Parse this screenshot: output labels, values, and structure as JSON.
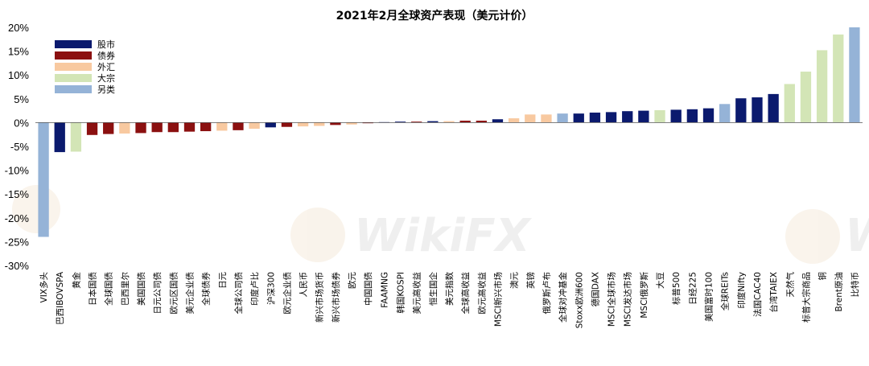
{
  "chart_data": {
    "type": "bar",
    "title": "2021年2月全球资产表现（美元计价）",
    "ylim": [
      -30,
      20
    ],
    "ytick_labels": [
      "20%",
      "15%",
      "10%",
      "5%",
      "0%",
      "-5%",
      "-10%",
      "-15%",
      "-20%",
      "-25%",
      "-30%"
    ],
    "legend_position": "top-left",
    "legend": [
      {
        "label": "股市",
        "color": "#0b1a6e"
      },
      {
        "label": "债券",
        "color": "#8b1010"
      },
      {
        "label": "外汇",
        "color": "#f8c9a0"
      },
      {
        "label": "大宗",
        "color": "#d3e5b6"
      },
      {
        "label": "另类",
        "color": "#95b3d7"
      }
    ],
    "categories": [
      "VIX多头",
      "巴西IBOVSPA",
      "黄金",
      "日本国债",
      "全球国债",
      "巴西里尔",
      "美国国债",
      "日元公司债",
      "欧元区国债",
      "美元企业债",
      "全球债券",
      "日元",
      "全球公司债",
      "印度卢比",
      "沪深300",
      "欧元企业债",
      "人民币",
      "新兴市场货币",
      "新兴市场债券",
      "欧元",
      "中国国债",
      "FAAMNG",
      "韩国KOSPI",
      "美元高收益",
      "恒生国企",
      "美元指数",
      "全球高收益",
      "欧元高收益",
      "MSCI新兴市场",
      "澳元",
      "英镑",
      "俄罗斯卢布",
      "全球对冲基金",
      "Stoxx欧洲600",
      "德国DAX",
      "MSCI全球市场",
      "MSCI发达市场",
      "MSCI俄罗斯",
      "大豆",
      "标普500",
      "日经225",
      "美国富时100",
      "全球REITs",
      "印度Nifty",
      "法国CAC40",
      "台湾TAIEX",
      "天然气",
      "标普大宗商品",
      "铜",
      "Brent原油",
      "比特币"
    ],
    "values": [
      -24.0,
      -6.2,
      -6.1,
      -2.6,
      -2.4,
      -2.3,
      -2.2,
      -2.0,
      -2.0,
      -1.9,
      -1.8,
      -1.7,
      -1.6,
      -1.3,
      -1.0,
      -0.9,
      -0.8,
      -0.7,
      -0.5,
      -0.4,
      -0.1,
      0.1,
      0.2,
      0.2,
      0.3,
      0.3,
      0.4,
      0.4,
      0.7,
      0.9,
      1.7,
      1.7,
      1.9,
      1.9,
      2.1,
      2.2,
      2.4,
      2.5,
      2.6,
      2.7,
      2.8,
      3.0,
      3.9,
      5.1,
      5.3,
      6.0,
      8.1,
      10.7,
      15.2,
      18.5,
      20.0
    ],
    "groups": [
      "另类",
      "股市",
      "大宗",
      "债券",
      "债券",
      "外汇",
      "债券",
      "债券",
      "债券",
      "债券",
      "债券",
      "外汇",
      "债券",
      "外汇",
      "股市",
      "债券",
      "外汇",
      "外汇",
      "债券",
      "外汇",
      "债券",
      "股市",
      "股市",
      "债券",
      "股市",
      "外汇",
      "债券",
      "债券",
      "股市",
      "外汇",
      "外汇",
      "外汇",
      "另类",
      "股市",
      "股市",
      "股市",
      "股市",
      "股市",
      "大宗",
      "股市",
      "股市",
      "股市",
      "另类",
      "股市",
      "股市",
      "股市",
      "大宗",
      "大宗",
      "大宗",
      "大宗",
      "另类"
    ]
  },
  "watermark": {
    "text": "WikiFX"
  }
}
